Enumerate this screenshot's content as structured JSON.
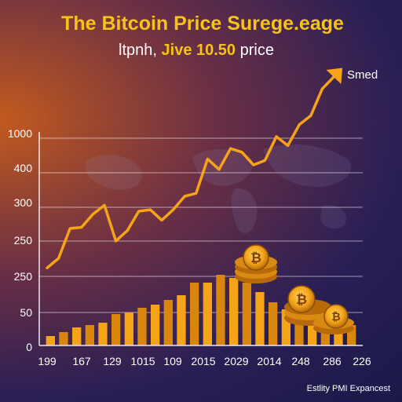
{
  "chart_data": {
    "type": "bar",
    "title": "The Bitcoin Price Surege.eage",
    "subtitle_prefix": "ltpnh, ",
    "subtitle_highlight": "Jive 10.50",
    "subtitle_suffix": " price",
    "annotation": "Smed",
    "footer": "Estlity PMI Expancest",
    "y_ticks": [
      "1000",
      "400",
      "300",
      "250",
      "250",
      "50",
      "0"
    ],
    "x_ticks": [
      "199",
      "167",
      "129",
      "1015",
      "109",
      "2015",
      "2029",
      "2014",
      "248",
      "286",
      "226"
    ],
    "bar_values": [
      12,
      17,
      23,
      26,
      29,
      40,
      42,
      48,
      52,
      58,
      64,
      80,
      80,
      90,
      86,
      80,
      68,
      55,
      46,
      40,
      36,
      30,
      28,
      26
    ],
    "bar_ylim": [
      0,
      200
    ],
    "line_values": [
      260,
      292,
      392,
      396,
      440,
      470,
      350,
      385,
      450,
      455,
      420,
      455,
      500,
      510,
      625,
      590,
      660,
      648,
      605,
      620,
      700,
      670,
      740,
      770,
      860,
      900
    ],
    "line_ylim": [
      0,
      1000
    ],
    "grid": true,
    "colors": {
      "bar": "#f5a418",
      "bar_dark": "#d9860f",
      "line": "#f5a418",
      "axis": "#e8e8f0",
      "grid": "#ffffff",
      "accent": "#f7c31a"
    }
  }
}
